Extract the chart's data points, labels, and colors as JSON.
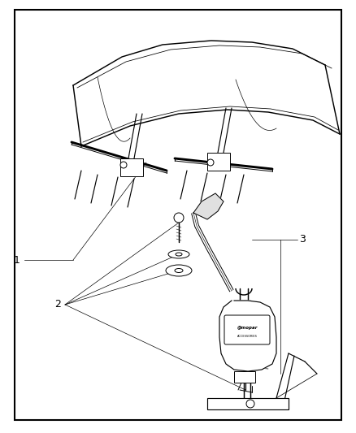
{
  "bg_color": "#ffffff",
  "border_color": "#000000",
  "border_linewidth": 1.5,
  "fig_width": 4.38,
  "fig_height": 5.33,
  "label_1": "1",
  "label_2": "2",
  "label_3": "3",
  "label_color": "#000000",
  "line_color": "#000000",
  "line_width": 0.7
}
